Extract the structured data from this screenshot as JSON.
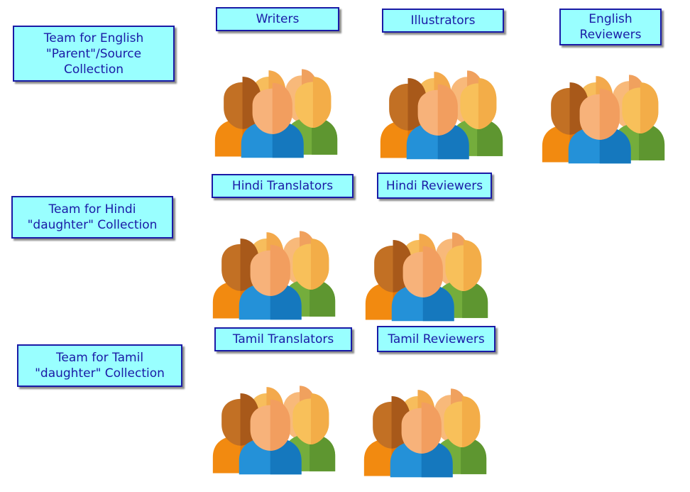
{
  "teams": [
    {
      "id": "english",
      "lines": [
        "Team for English",
        "\"Parent\"/Source",
        "Collection"
      ]
    },
    {
      "id": "hindi",
      "lines": [
        "Team for Hindi",
        "\"daughter\" Collection"
      ]
    },
    {
      "id": "tamil",
      "lines": [
        "Team for Tamil",
        "\"daughter\" Collection"
      ]
    }
  ],
  "roles": {
    "writers": {
      "lines": [
        "Writers"
      ],
      "icon": "people-group-icon"
    },
    "illustrators": {
      "lines": [
        "Illustrators"
      ],
      "icon": "people-group-icon"
    },
    "english_reviewers": {
      "lines": [
        "English",
        "Reviewers"
      ],
      "icon": "people-group-icon"
    },
    "hindi_translators": {
      "lines": [
        "Hindi Translators"
      ],
      "icon": "people-group-icon"
    },
    "hindi_reviewers": {
      "lines": [
        "Hindi Reviewers"
      ],
      "icon": "people-group-icon"
    },
    "tamil_translators": {
      "lines": [
        "Tamil Translators"
      ],
      "icon": "people-group-icon"
    },
    "tamil_reviewers": {
      "lines": [
        "Tamil Reviewers"
      ],
      "icon": "people-group-icon"
    }
  },
  "colors": {
    "label_fill": "#99ffff",
    "label_border": "#1a1aa6",
    "label_text": "#1a1aa6"
  }
}
